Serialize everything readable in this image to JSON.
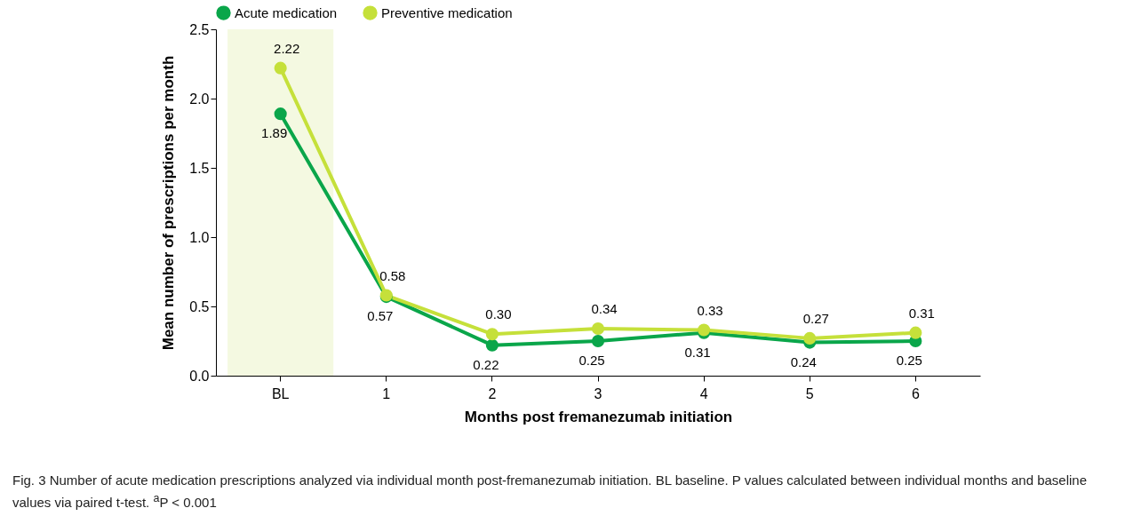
{
  "chart_data": {
    "type": "line",
    "xlabel": "Months post fremanezumab initiation",
    "ylabel": "Mean number of prescriptions per month",
    "categories": [
      "BL",
      "1",
      "2",
      "3",
      "4",
      "5",
      "6"
    ],
    "series": [
      {
        "name": "Acute medication",
        "color": "#0aa64a",
        "values": [
          1.89,
          0.57,
          0.22,
          0.25,
          0.31,
          0.24,
          0.25
        ],
        "value_labels": [
          "1.89",
          "0.57",
          "0.22",
          "0.25",
          "0.31",
          "0.24",
          "0.25"
        ]
      },
      {
        "name": "Preventive medication",
        "color": "#c5e03a",
        "values": [
          2.22,
          0.58,
          0.3,
          0.34,
          0.33,
          0.27,
          0.31
        ],
        "value_labels": [
          "2.22",
          "0.58",
          "0.30",
          "0.34",
          "0.33",
          "0.27",
          "0.31"
        ]
      }
    ],
    "ylim": [
      0,
      2.5
    ],
    "yticks": [
      {
        "value": 0,
        "label": "0.0"
      },
      {
        "value": 0.5,
        "label": "0.5"
      },
      {
        "value": 1,
        "label": "1.0"
      },
      {
        "value": 1.5,
        "label": "1.5"
      },
      {
        "value": 2,
        "label": "2.0"
      },
      {
        "value": 2.5,
        "label": "2.5"
      }
    ],
    "bands": [
      {
        "axis": "x",
        "from": "BL",
        "to": "BL",
        "color": "#f4f9e1"
      }
    ],
    "legend": "top",
    "marker": "circle",
    "grid": false,
    "annotations": [
      "Fig. 3 Number of acute medication prescriptions analyzed via individual month post-fremanezumab initiation. BL baseline. P values calculated between individual months and baseline values via paired t-test. $^{a}$P < 0.001"
    ]
  }
}
